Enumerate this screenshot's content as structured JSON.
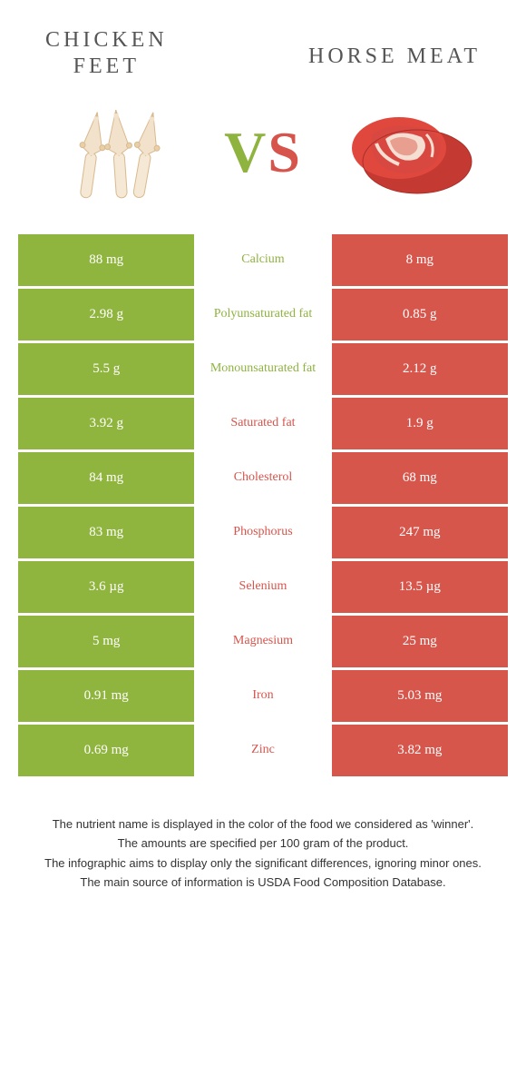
{
  "header": {
    "left_title": "Chicken\nfeet",
    "right_title": "Horse meat"
  },
  "vs": {
    "v": "V",
    "s": "S"
  },
  "colors": {
    "left_cell": "#90b53e",
    "right_cell": "#d7564c",
    "left_text": "#8fb33f",
    "right_text": "#d6544b"
  },
  "rows": [
    {
      "left": "88 mg",
      "label": "Calcium",
      "right": "8 mg",
      "winner": "left"
    },
    {
      "left": "2.98 g",
      "label": "Polyunsaturated fat",
      "right": "0.85 g",
      "winner": "left"
    },
    {
      "left": "5.5 g",
      "label": "Monounsaturated fat",
      "right": "2.12 g",
      "winner": "left"
    },
    {
      "left": "3.92 g",
      "label": "Saturated fat",
      "right": "1.9 g",
      "winner": "right"
    },
    {
      "left": "84 mg",
      "label": "Cholesterol",
      "right": "68 mg",
      "winner": "right"
    },
    {
      "left": "83 mg",
      "label": "Phosphorus",
      "right": "247 mg",
      "winner": "right"
    },
    {
      "left": "3.6 µg",
      "label": "Selenium",
      "right": "13.5 µg",
      "winner": "right"
    },
    {
      "left": "5 mg",
      "label": "Magnesium",
      "right": "25 mg",
      "winner": "right"
    },
    {
      "left": "0.91 mg",
      "label": "Iron",
      "right": "5.03 mg",
      "winner": "right"
    },
    {
      "left": "0.69 mg",
      "label": "Zinc",
      "right": "3.82 mg",
      "winner": "right"
    }
  ],
  "footer": [
    "The nutrient name is displayed in the color of the food we considered as 'winner'.",
    "The amounts are specified per 100 gram of the product.",
    "The infographic aims to display only the significant differences, ignoring minor ones.",
    "The main source of information is USDA Food Composition Database."
  ]
}
